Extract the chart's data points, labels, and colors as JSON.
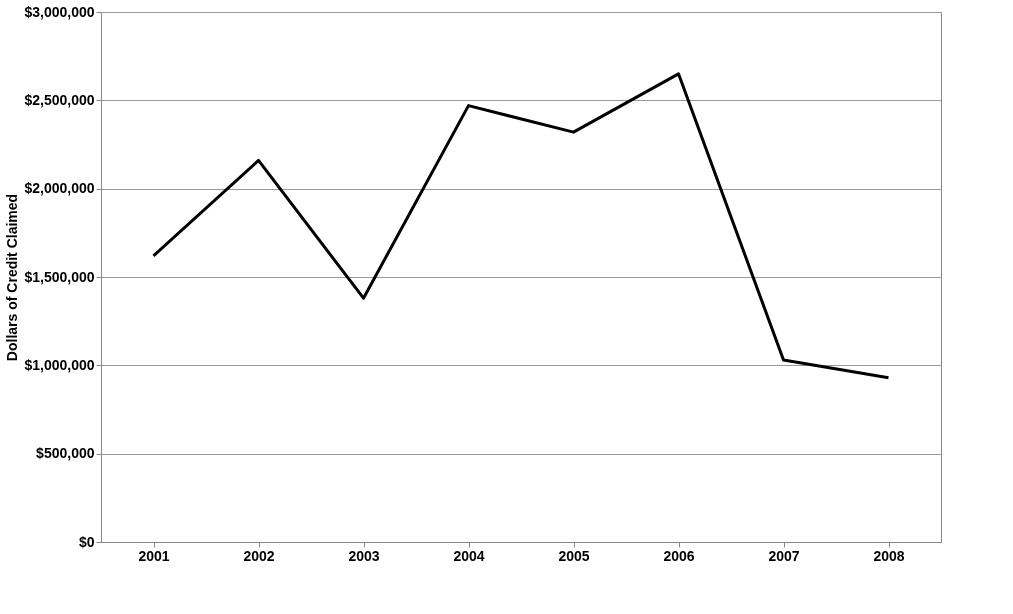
{
  "chart_data": {
    "type": "line",
    "ylabel": "Dollars of Credit Claimed",
    "categories": [
      "2001",
      "2002",
      "2003",
      "2004",
      "2005",
      "2006",
      "2007",
      "2008"
    ],
    "series": [
      {
        "color": "#000000",
        "values": [
          1620000,
          2160000,
          1380000,
          2470000,
          2320000,
          2650000,
          1030000,
          930000
        ]
      }
    ],
    "ylim": [
      0,
      3000000
    ],
    "yticks": [
      {
        "value": 0,
        "label": "$0"
      },
      {
        "value": 500000,
        "label": "$500,000"
      },
      {
        "value": 1000000,
        "label": "$1,000,000"
      },
      {
        "value": 1500000,
        "label": "$1,500,000"
      },
      {
        "value": 2000000,
        "label": "$2,000,000"
      },
      {
        "value": 2500000,
        "label": "$2,500,000"
      },
      {
        "value": 3000000,
        "label": "$3,000,000"
      }
    ],
    "grid": "y",
    "marker": "none",
    "line_style": "solid"
  }
}
